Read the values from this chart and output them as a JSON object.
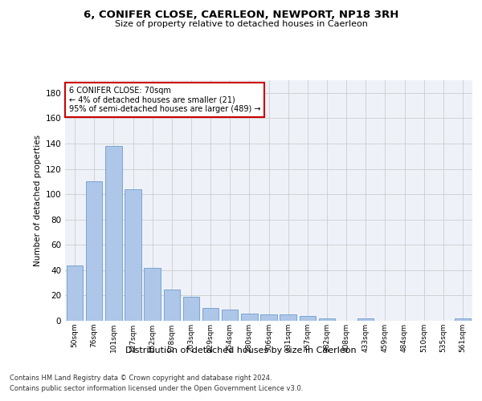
{
  "title": "6, CONIFER CLOSE, CAERLEON, NEWPORT, NP18 3RH",
  "subtitle": "Size of property relative to detached houses in Caerleon",
  "xlabel": "Distribution of detached houses by size in Caerleon",
  "ylabel": "Number of detached properties",
  "categories": [
    "50sqm",
    "76sqm",
    "101sqm",
    "127sqm",
    "152sqm",
    "178sqm",
    "203sqm",
    "229sqm",
    "254sqm",
    "280sqm",
    "306sqm",
    "331sqm",
    "357sqm",
    "382sqm",
    "408sqm",
    "433sqm",
    "459sqm",
    "484sqm",
    "510sqm",
    "535sqm",
    "561sqm"
  ],
  "values": [
    44,
    110,
    138,
    104,
    42,
    25,
    19,
    10,
    9,
    6,
    5,
    5,
    4,
    2,
    0,
    2,
    0,
    0,
    0,
    0,
    2
  ],
  "bar_color": "#aec6e8",
  "bar_edge_color": "#5b8fc9",
  "grid_color": "#cccccc",
  "background_color": "#eef2f8",
  "annotation_line1": "6 CONIFER CLOSE: 70sqm",
  "annotation_line2": "← 4% of detached houses are smaller (21)",
  "annotation_line3": "95% of semi-detached houses are larger (489) →",
  "annotation_box_color": "#ffffff",
  "annotation_border_color": "#cc0000",
  "ylim": [
    0,
    190
  ],
  "yticks": [
    0,
    20,
    40,
    60,
    80,
    100,
    120,
    140,
    160,
    180
  ],
  "footer_line1": "Contains HM Land Registry data © Crown copyright and database right 2024.",
  "footer_line2": "Contains public sector information licensed under the Open Government Licence v3.0."
}
